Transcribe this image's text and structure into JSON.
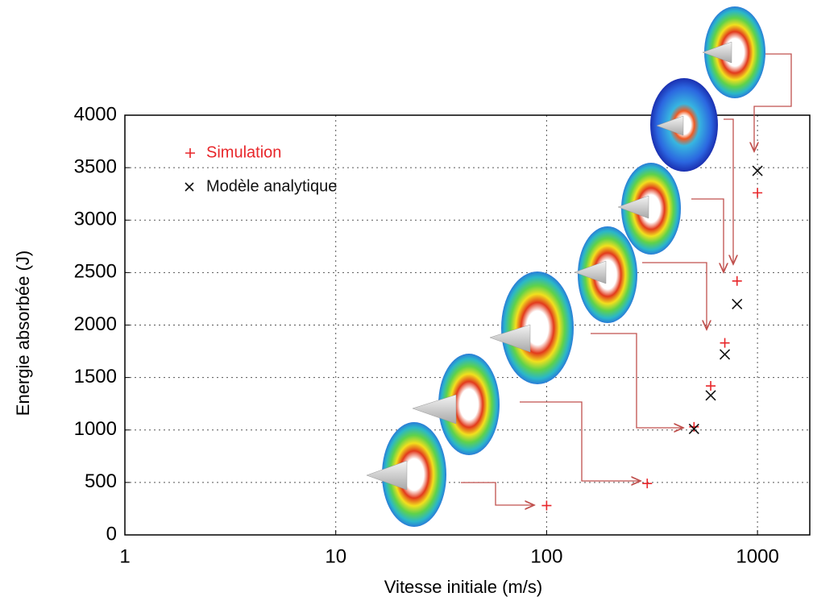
{
  "chart_data": {
    "type": "scatter",
    "x_label": "Vitesse initiale (m/s)",
    "y_label": "Energie absorbée (J)",
    "xscale": "log",
    "xlim": [
      1,
      1770
    ],
    "xticks": [
      1,
      10,
      100,
      1000
    ],
    "ylim": [
      0,
      4000
    ],
    "yticks": [
      0,
      500,
      1000,
      1500,
      2000,
      2500,
      3000,
      3500,
      4000
    ],
    "grid": true,
    "legend": "upper left",
    "series": [
      {
        "name": "Simulation",
        "color": "#e8262a",
        "marker": "+",
        "x": [
          100,
          300,
          500,
          600,
          700,
          800,
          1000
        ],
        "values": [
          280,
          490,
          1030,
          1420,
          1830,
          2420,
          3260
        ]
      },
      {
        "name": "Modèle analytique",
        "color": "#111111",
        "marker": "x",
        "x": [
          500,
          600,
          700,
          800,
          1000
        ],
        "values": [
          1010,
          1330,
          1720,
          2200,
          3470
        ]
      }
    ]
  }
}
